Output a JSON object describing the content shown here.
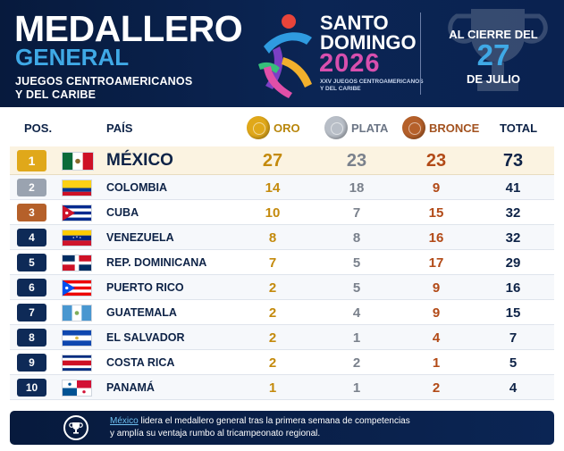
{
  "header": {
    "title": "MEDALLERO",
    "subtitle": "GENERAL",
    "line1": "JUEGOS CENTROAMERICANOS",
    "line2": "Y DEL CARIBE",
    "event_name_1": "SANTO",
    "event_name_2": "DOMINGO",
    "event_year": "2026",
    "event_small_1": "XXV JUEGOS CENTROAMERICANOS",
    "event_small_2": "Y DEL CARIBE",
    "cierre_1": "AL CIERRE DEL",
    "cierre_day": "27",
    "cierre_2": "DE JULIO"
  },
  "table": {
    "headers": {
      "pos": "POS.",
      "pais": "PAÍS",
      "oro": "ORO",
      "plata": "PLATA",
      "bronce": "BRONCE",
      "total": "TOTAL"
    },
    "rows": [
      {
        "pos": "1",
        "country": "MÉXICO",
        "oro": "27",
        "plata": "23",
        "bronce": "23",
        "total": "73"
      },
      {
        "pos": "2",
        "country": "COLOMBIA",
        "oro": "14",
        "plata": "18",
        "bronce": "9",
        "total": "41"
      },
      {
        "pos": "3",
        "country": "CUBA",
        "oro": "10",
        "plata": "7",
        "bronce": "15",
        "total": "32"
      },
      {
        "pos": "4",
        "country": "VENEZUELA",
        "oro": "8",
        "plata": "8",
        "bronce": "16",
        "total": "32"
      },
      {
        "pos": "5",
        "country": "REP. DOMINICANA",
        "oro": "7",
        "plata": "5",
        "bronce": "17",
        "total": "29"
      },
      {
        "pos": "6",
        "country": "PUERTO RICO",
        "oro": "2",
        "plata": "5",
        "bronce": "9",
        "total": "16"
      },
      {
        "pos": "7",
        "country": "GUATEMALA",
        "oro": "2",
        "plata": "4",
        "bronce": "9",
        "total": "15"
      },
      {
        "pos": "8",
        "country": "EL SALVADOR",
        "oro": "2",
        "plata": "1",
        "bronce": "4",
        "total": "7"
      },
      {
        "pos": "9",
        "country": "COSTA RICA",
        "oro": "2",
        "plata": "2",
        "bronce": "1",
        "total": "5"
      },
      {
        "pos": "10",
        "country": "PANAMÁ",
        "oro": "1",
        "plata": "1",
        "bronce": "2",
        "total": "4"
      }
    ]
  },
  "footer": {
    "link": "México",
    "text_1": " lidera el medallero general tras la primera semana de competencias",
    "text_2": "y amplía su ventaja rumbo al tricampeonato regional."
  },
  "colors": {
    "navy": "#0b2554",
    "gold": "#e0a81a",
    "silver": "#9aa3b0",
    "bronze": "#b5602a",
    "accent_blue": "#3fa9e6"
  }
}
